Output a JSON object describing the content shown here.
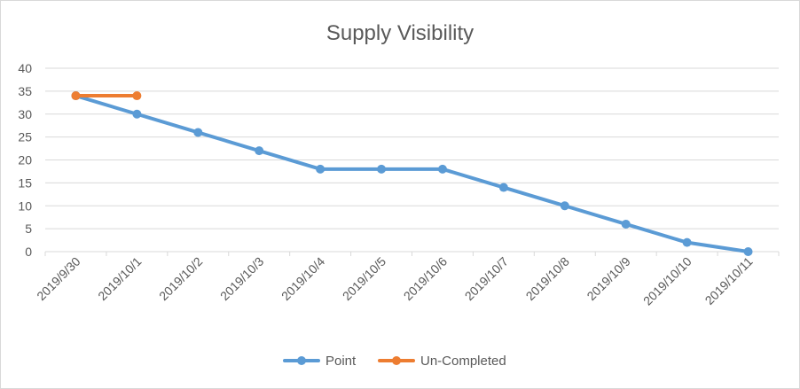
{
  "chart_data": {
    "type": "line",
    "title": "Supply Visibility",
    "xlabel": "",
    "ylabel": "",
    "categories": [
      "2019/9/30",
      "2019/10/1",
      "2019/10/2",
      "2019/10/3",
      "2019/10/4",
      "2019/10/5",
      "2019/10/6",
      "2019/10/7",
      "2019/10/8",
      "2019/10/9",
      "2019/10/10",
      "2019/10/11"
    ],
    "ylim": [
      0,
      40
    ],
    "yticks": [
      0,
      5,
      10,
      15,
      20,
      25,
      30,
      35,
      40
    ],
    "grid": true,
    "legend_position": "bottom",
    "series": [
      {
        "name": "Point",
        "color": "#5b9bd5",
        "values": [
          34,
          30,
          26,
          22,
          18,
          18,
          18,
          14,
          10,
          6,
          2,
          0
        ]
      },
      {
        "name": "Un-Completed",
        "color": "#ed7d31",
        "values": [
          34,
          34,
          null,
          null,
          null,
          null,
          null,
          null,
          null,
          null,
          null,
          null
        ]
      }
    ]
  }
}
